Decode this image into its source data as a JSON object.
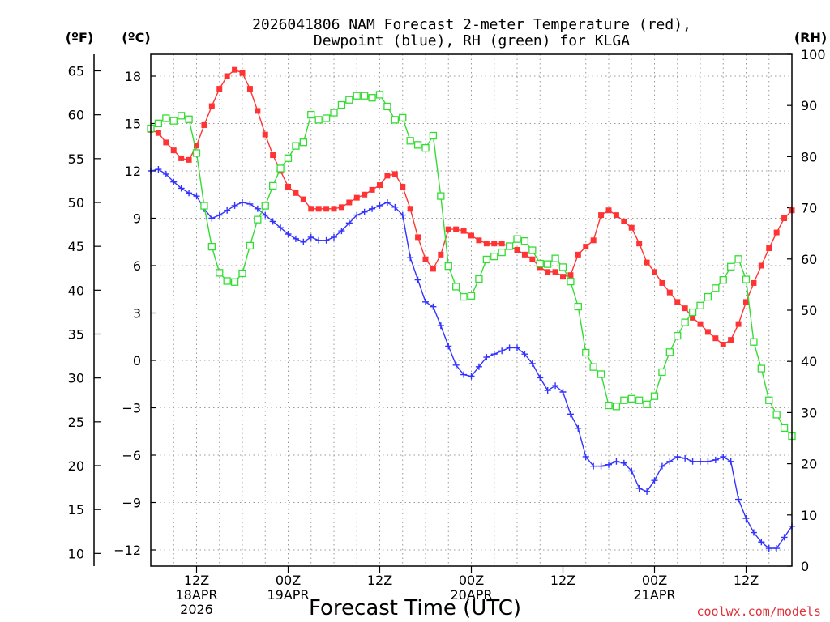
{
  "chart_data": {
    "type": "line",
    "title_line1": "2026041806 NAM Forecast 2-meter Temperature (red),",
    "title_line2": "Dewpoint (blue), RH (green) for KLGA",
    "xlabel": "Forecast Time (UTC)",
    "left_axis_label_f": "(ºF)",
    "left_axis_label_c": "(ºC)",
    "right_axis_label": "(RH)",
    "credit": "coolwx.com/models",
    "x_unit": "forecast hour",
    "xlim": [
      0,
      84
    ],
    "x_ticks": [
      {
        "hour": 6,
        "lines": [
          "12Z",
          "18APR",
          "2026"
        ]
      },
      {
        "hour": 18,
        "lines": [
          "00Z",
          "19APR"
        ]
      },
      {
        "hour": 30,
        "lines": [
          "12Z"
        ]
      },
      {
        "hour": 42,
        "lines": [
          "00Z",
          "20APR"
        ]
      },
      {
        "hour": 54,
        "lines": [
          "12Z"
        ]
      },
      {
        "hour": 66,
        "lines": [
          "00Z",
          "21APR"
        ]
      },
      {
        "hour": 78,
        "lines": [
          "12Z"
        ]
      }
    ],
    "y_celsius": {
      "lim": [
        -13,
        19.3
      ],
      "ticks": [
        -12,
        -9,
        -6,
        -3,
        0,
        3,
        6,
        9,
        12,
        15,
        18
      ],
      "tick_labels": [
        "−12",
        "−9",
        "−6",
        "−3",
        "0",
        "3",
        "6",
        "9",
        "12",
        "15",
        "18"
      ]
    },
    "y_fahrenheit": {
      "ticks": [
        10,
        15,
        20,
        25,
        30,
        35,
        40,
        45,
        50,
        55,
        60,
        65
      ]
    },
    "y_rh": {
      "lim": [
        0,
        100
      ],
      "ticks": [
        0,
        10,
        20,
        30,
        40,
        50,
        60,
        70,
        80,
        90,
        100
      ]
    },
    "grid": true,
    "series": [
      {
        "name": "Temperature",
        "color": "#ff3333",
        "axis": "celsius",
        "marker": "filled-square",
        "x": [
          0,
          1,
          2,
          3,
          4,
          5,
          6,
          7,
          8,
          9,
          10,
          11,
          12,
          13,
          14,
          15,
          16,
          17,
          18,
          19,
          20,
          21,
          22,
          23,
          24,
          25,
          26,
          27,
          28,
          29,
          30,
          31,
          32,
          33,
          34,
          35,
          36,
          37,
          38,
          39,
          40,
          41,
          42,
          43,
          44,
          45,
          46,
          47,
          48,
          49,
          50,
          51,
          52,
          53,
          54,
          55,
          56,
          57,
          58,
          59,
          60,
          61,
          62,
          63,
          64,
          65,
          66,
          67,
          68,
          69,
          70,
          71,
          72,
          73,
          74,
          75,
          76,
          77,
          78,
          79,
          80,
          81,
          82,
          83,
          84
        ],
        "values": [
          14.6,
          14.4,
          13.8,
          13.3,
          12.8,
          12.7,
          13.6,
          14.9,
          16.1,
          17.2,
          18.0,
          18.4,
          18.2,
          17.2,
          15.8,
          14.3,
          13.0,
          12.0,
          11.0,
          10.6,
          10.2,
          9.6,
          9.6,
          9.6,
          9.6,
          9.7,
          10.0,
          10.3,
          10.5,
          10.8,
          11.1,
          11.7,
          11.8,
          11.0,
          9.6,
          7.8,
          6.4,
          5.8,
          6.7,
          8.3,
          8.3,
          8.2,
          7.9,
          7.6,
          7.4,
          7.4,
          7.4,
          7.2,
          7.0,
          6.7,
          6.4,
          5.9,
          5.6,
          5.6,
          5.3,
          5.4,
          6.7,
          7.2,
          7.6,
          9.2,
          9.5,
          9.2,
          8.8,
          8.4,
          7.4,
          6.2,
          5.6,
          4.9,
          4.3,
          3.7,
          3.3,
          2.7,
          2.3,
          1.8,
          1.4,
          1.0,
          1.3,
          2.3,
          3.7,
          4.9,
          6.0,
          7.1,
          8.1,
          9.0,
          9.5
        ]
      },
      {
        "name": "Dewpoint",
        "color": "#3333ff",
        "axis": "celsius",
        "marker": "plus",
        "x": [
          0,
          1,
          2,
          3,
          4,
          5,
          6,
          7,
          8,
          9,
          10,
          11,
          12,
          13,
          14,
          15,
          16,
          17,
          18,
          19,
          20,
          21,
          22,
          23,
          24,
          25,
          26,
          27,
          28,
          29,
          30,
          31,
          32,
          33,
          34,
          35,
          36,
          37,
          38,
          39,
          40,
          41,
          42,
          43,
          44,
          45,
          46,
          47,
          48,
          49,
          50,
          51,
          52,
          53,
          54,
          55,
          56,
          57,
          58,
          59,
          60,
          61,
          62,
          63,
          64,
          65,
          66,
          67,
          68,
          69,
          70,
          71,
          72,
          73,
          74,
          75,
          76,
          77,
          78,
          79,
          80,
          81,
          82,
          83,
          84
        ],
        "values": [
          12.0,
          12.1,
          11.8,
          11.3,
          10.9,
          10.6,
          10.4,
          9.6,
          9.0,
          9.2,
          9.5,
          9.8,
          10.0,
          9.9,
          9.6,
          9.2,
          8.8,
          8.4,
          8.0,
          7.7,
          7.5,
          7.8,
          7.6,
          7.6,
          7.8,
          8.2,
          8.7,
          9.2,
          9.4,
          9.6,
          9.8,
          10.0,
          9.7,
          9.2,
          6.5,
          5.1,
          3.7,
          3.4,
          2.2,
          0.9,
          -0.3,
          -0.9,
          -1.0,
          -0.4,
          0.2,
          0.4,
          0.6,
          0.8,
          0.8,
          0.4,
          -0.2,
          -1.1,
          -1.9,
          -1.6,
          -2.0,
          -3.4,
          -4.3,
          -6.1,
          -6.7,
          -6.7,
          -6.6,
          -6.4,
          -6.5,
          -7.0,
          -8.1,
          -8.3,
          -7.6,
          -6.7,
          -6.4,
          -6.1,
          -6.2,
          -6.4,
          -6.4,
          -6.4,
          -6.3,
          -6.1,
          -6.4,
          -8.8,
          -10.0,
          -10.9,
          -11.5,
          -11.9,
          -11.9,
          -11.2,
          -10.5
        ]
      },
      {
        "name": "RH",
        "color": "#33dd33",
        "axis": "rh",
        "marker": "open-square",
        "x": [
          0,
          1,
          2,
          3,
          4,
          5,
          6,
          7,
          8,
          9,
          10,
          11,
          12,
          13,
          14,
          15,
          16,
          17,
          18,
          19,
          20,
          21,
          22,
          23,
          24,
          25,
          26,
          27,
          28,
          29,
          30,
          31,
          32,
          33,
          34,
          35,
          36,
          37,
          38,
          39,
          40,
          41,
          42,
          43,
          44,
          45,
          46,
          47,
          48,
          49,
          50,
          51,
          52,
          53,
          54,
          55,
          56,
          57,
          58,
          59,
          60,
          61,
          62,
          63,
          64,
          65,
          66,
          67,
          68,
          69,
          70,
          71,
          72,
          73,
          74,
          75,
          76,
          77,
          78,
          79,
          80,
          81,
          82,
          83,
          84
        ],
        "values": [
          85.5,
          86.5,
          87.5,
          87,
          88,
          87.3,
          80.7,
          70.4,
          62.4,
          57.3,
          55.7,
          55.5,
          57.2,
          62.6,
          67.7,
          70.4,
          74.3,
          77.7,
          79.7,
          82.1,
          82.8,
          88.2,
          87.2,
          87.5,
          88.6,
          90.1,
          91.1,
          91.9,
          91.9,
          91.5,
          92.1,
          89.8,
          87.2,
          87.6,
          83.1,
          82.3,
          81.7,
          84.1,
          72.3,
          58.6,
          54.6,
          52.6,
          52.8,
          56.1,
          59.9,
          60.5,
          61.3,
          62.5,
          63.9,
          63.5,
          61.7,
          59.1,
          59.0,
          60.1,
          58.4,
          55.6,
          50.7,
          41.7,
          38.9,
          37.5,
          31.4,
          31.2,
          32.4,
          32.7,
          32.4,
          31.6,
          33.2,
          37.9,
          41.8,
          45.0,
          47.6,
          49.6,
          50.9,
          52.6,
          54.3,
          55.9,
          58.5,
          60.0,
          56.0,
          43.8,
          38.6,
          32.4,
          29.6,
          27.0,
          25.4
        ]
      }
    ]
  }
}
